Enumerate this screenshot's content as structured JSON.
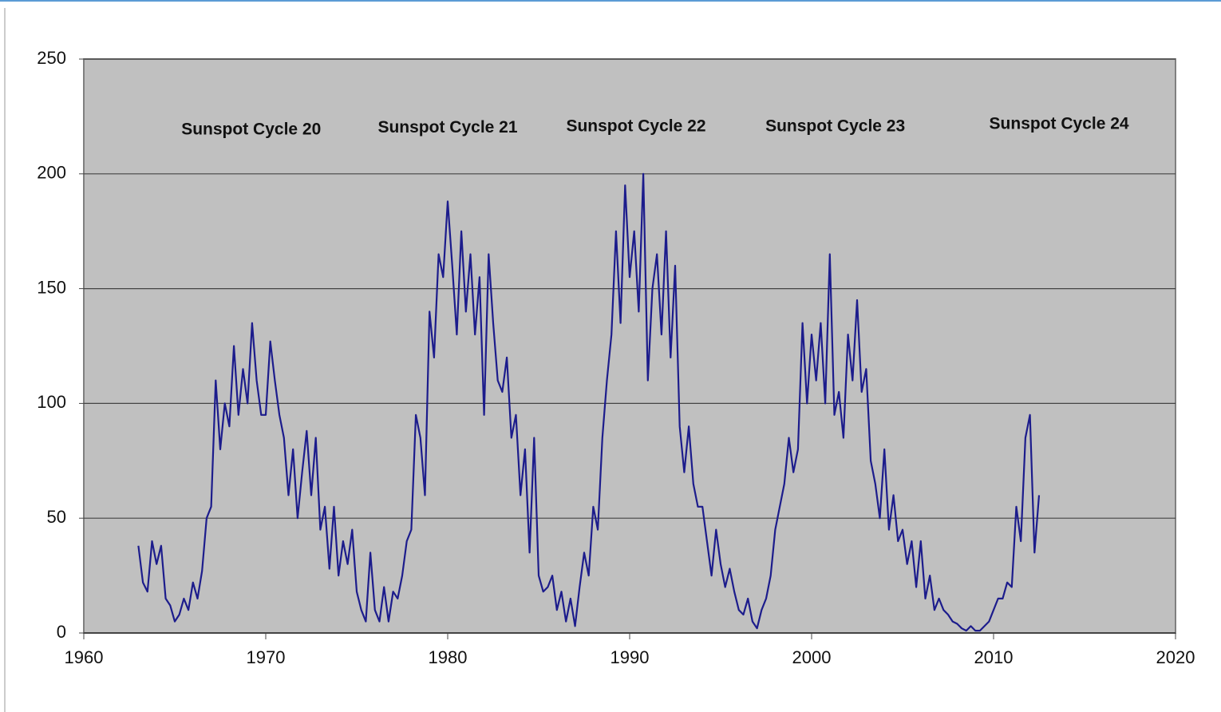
{
  "chart_data": {
    "type": "line",
    "annotations": [
      {
        "text": "Sunspot Cycle 20",
        "x": 1969.2,
        "y": 219
      },
      {
        "text": "Sunspot Cycle 21",
        "x": 1980.0,
        "y": 220
      },
      {
        "text": "Sunspot Cycle 22",
        "x": 1990.35,
        "y": 220.5
      },
      {
        "text": "Sunspot Cycle 23",
        "x": 2001.3,
        "y": 220.5
      },
      {
        "text": "Sunspot Cycle 24",
        "x": 2013.6,
        "y": 221.5
      }
    ],
    "xlim": [
      1960,
      2020
    ],
    "xticks": [
      1960,
      1970,
      1980,
      1990,
      2000,
      2010,
      2020
    ],
    "ylim": [
      0,
      250
    ],
    "yticks": [
      0,
      50,
      100,
      150,
      200,
      250
    ],
    "grid": true,
    "background": "#c0c0c0",
    "x": [
      1963,
      1963.25,
      1963.5,
      1963.75,
      1964,
      1964.25,
      1964.5,
      1964.75,
      1965,
      1965.25,
      1965.5,
      1965.75,
      1966,
      1966.25,
      1966.5,
      1966.75,
      1967,
      1967.25,
      1967.5,
      1967.75,
      1968,
      1968.25,
      1968.5,
      1968.75,
      1969,
      1969.25,
      1969.5,
      1969.75,
      1970,
      1970.25,
      1970.5,
      1970.75,
      1971,
      1971.25,
      1971.5,
      1971.75,
      1972,
      1972.25,
      1972.5,
      1972.75,
      1973,
      1973.25,
      1973.5,
      1973.75,
      1974,
      1974.25,
      1974.5,
      1974.75,
      1975,
      1975.25,
      1975.5,
      1975.75,
      1976,
      1976.25,
      1976.5,
      1976.75,
      1977,
      1977.25,
      1977.5,
      1977.75,
      1978,
      1978.25,
      1978.5,
      1978.75,
      1979,
      1979.25,
      1979.5,
      1979.75,
      1980,
      1980.25,
      1980.5,
      1980.75,
      1981,
      1981.25,
      1981.5,
      1981.75,
      1982,
      1982.25,
      1982.5,
      1982.75,
      1983,
      1983.25,
      1983.5,
      1983.75,
      1984,
      1984.25,
      1984.5,
      1984.75,
      1985,
      1985.25,
      1985.5,
      1985.75,
      1986,
      1986.25,
      1986.5,
      1986.75,
      1987,
      1987.25,
      1987.5,
      1987.75,
      1988,
      1988.25,
      1988.5,
      1988.75,
      1989,
      1989.25,
      1989.5,
      1989.75,
      1990,
      1990.25,
      1990.5,
      1990.75,
      1991,
      1991.25,
      1991.5,
      1991.75,
      1992,
      1992.25,
      1992.5,
      1992.75,
      1993,
      1993.25,
      1993.5,
      1993.75,
      1994,
      1994.25,
      1994.5,
      1994.75,
      1995,
      1995.25,
      1995.5,
      1995.75,
      1996,
      1996.25,
      1996.5,
      1996.75,
      1997,
      1997.25,
      1997.5,
      1997.75,
      1998,
      1998.25,
      1998.5,
      1998.75,
      1999,
      1999.25,
      1999.5,
      1999.75,
      2000,
      2000.25,
      2000.5,
      2000.75,
      2001,
      2001.25,
      2001.5,
      2001.75,
      2002,
      2002.25,
      2002.5,
      2002.75,
      2003,
      2003.25,
      2003.5,
      2003.75,
      2004,
      2004.25,
      2004.5,
      2004.75,
      2005,
      2005.25,
      2005.5,
      2005.75,
      2006,
      2006.25,
      2006.5,
      2006.75,
      2007,
      2007.25,
      2007.5,
      2007.75,
      2008,
      2008.25,
      2008.5,
      2008.75,
      2009,
      2009.25,
      2009.5,
      2009.75,
      2010,
      2010.25,
      2010.5,
      2010.75,
      2011,
      2011.25,
      2011.5,
      2011.75,
      2012,
      2012.25,
      2012.5
    ],
    "series": [
      {
        "color": "#1c1c8c",
        "values": [
          38,
          22,
          18,
          40,
          30,
          38,
          15,
          12,
          5,
          8,
          15,
          10,
          22,
          15,
          27,
          50,
          55,
          110,
          80,
          100,
          90,
          125,
          95,
          115,
          100,
          135,
          110,
          95,
          95,
          127,
          110,
          95,
          85,
          60,
          80,
          50,
          70,
          88,
          60,
          85,
          45,
          55,
          28,
          55,
          25,
          40,
          30,
          45,
          18,
          10,
          5,
          35,
          10,
          5,
          20,
          5,
          18,
          15,
          25,
          40,
          45,
          95,
          85,
          60,
          140,
          120,
          165,
          155,
          188,
          160,
          130,
          175,
          140,
          165,
          130,
          155,
          95,
          165,
          135,
          110,
          105,
          120,
          85,
          95,
          60,
          80,
          35,
          85,
          25,
          18,
          20,
          25,
          10,
          18,
          5,
          15,
          3,
          20,
          35,
          25,
          55,
          45,
          85,
          110,
          130,
          175,
          135,
          195,
          155,
          175,
          140,
          200,
          110,
          150,
          165,
          130,
          175,
          120,
          160,
          90,
          70,
          90,
          65,
          55,
          55,
          40,
          25,
          45,
          30,
          20,
          28,
          18,
          10,
          8,
          15,
          5,
          2,
          10,
          15,
          25,
          45,
          55,
          65,
          85,
          70,
          80,
          135,
          100,
          130,
          110,
          135,
          100,
          165,
          95,
          105,
          85,
          130,
          110,
          145,
          105,
          115,
          75,
          65,
          50,
          80,
          45,
          60,
          40,
          45,
          30,
          40,
          20,
          40,
          15,
          25,
          10,
          15,
          10,
          8,
          5,
          4,
          2,
          1,
          3,
          1,
          1,
          3,
          5,
          10,
          15,
          15,
          22,
          20,
          55,
          40,
          85,
          95,
          35,
          60
        ]
      }
    ]
  }
}
